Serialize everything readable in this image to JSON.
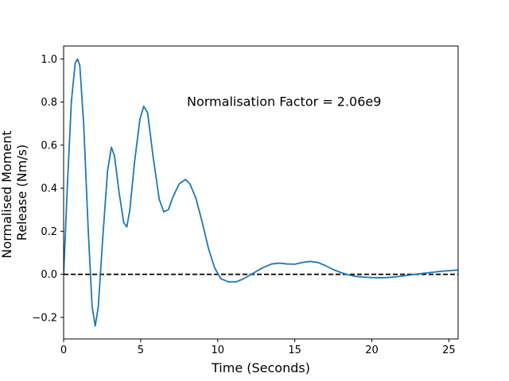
{
  "chart_data": {
    "type": "line",
    "title": "",
    "xlabel": "Time (Seconds)",
    "ylabel_lines": [
      "Normalised Moment",
      "Release (Nm/s)"
    ],
    "xlim": [
      0,
      25.6
    ],
    "ylim": [
      -0.3,
      1.06
    ],
    "xticks": [
      0,
      5,
      10,
      15,
      20,
      25
    ],
    "yticks": [
      -0.2,
      0.0,
      0.2,
      0.4,
      0.6,
      0.8,
      1.0
    ],
    "ytick_labels": [
      "−0.2",
      "0.0",
      "0.2",
      "0.4",
      "0.6",
      "0.8",
      "1.0"
    ],
    "grid": false,
    "annotation": {
      "text": "Normalisation Factor = 2.06e9",
      "x": 8.0,
      "y": 0.8
    },
    "reference_line": {
      "y": 0.0,
      "style": "dashed",
      "color": "#000000"
    },
    "series": [
      {
        "color": "#1f77b4",
        "points": [
          [
            0.0,
            0.0
          ],
          [
            0.25,
            0.42
          ],
          [
            0.5,
            0.8
          ],
          [
            0.75,
            0.98
          ],
          [
            0.9,
            1.0
          ],
          [
            1.05,
            0.97
          ],
          [
            1.3,
            0.7
          ],
          [
            1.6,
            0.2
          ],
          [
            1.85,
            -0.15
          ],
          [
            2.05,
            -0.24
          ],
          [
            2.25,
            -0.15
          ],
          [
            2.55,
            0.18
          ],
          [
            2.85,
            0.48
          ],
          [
            3.1,
            0.59
          ],
          [
            3.3,
            0.55
          ],
          [
            3.6,
            0.38
          ],
          [
            3.9,
            0.24
          ],
          [
            4.1,
            0.22
          ],
          [
            4.3,
            0.3
          ],
          [
            4.6,
            0.52
          ],
          [
            4.95,
            0.72
          ],
          [
            5.2,
            0.78
          ],
          [
            5.45,
            0.75
          ],
          [
            5.8,
            0.55
          ],
          [
            6.2,
            0.35
          ],
          [
            6.5,
            0.29
          ],
          [
            6.8,
            0.3
          ],
          [
            7.1,
            0.36
          ],
          [
            7.5,
            0.42
          ],
          [
            7.9,
            0.44
          ],
          [
            8.2,
            0.42
          ],
          [
            8.6,
            0.35
          ],
          [
            9.0,
            0.24
          ],
          [
            9.4,
            0.12
          ],
          [
            9.8,
            0.03
          ],
          [
            10.2,
            -0.02
          ],
          [
            10.7,
            -0.035
          ],
          [
            11.2,
            -0.035
          ],
          [
            11.7,
            -0.02
          ],
          [
            12.3,
            0.005
          ],
          [
            12.9,
            0.03
          ],
          [
            13.5,
            0.048
          ],
          [
            14.0,
            0.052
          ],
          [
            14.5,
            0.048
          ],
          [
            15.0,
            0.047
          ],
          [
            15.5,
            0.055
          ],
          [
            16.0,
            0.06
          ],
          [
            16.5,
            0.055
          ],
          [
            17.0,
            0.04
          ],
          [
            17.5,
            0.022
          ],
          [
            18.0,
            0.008
          ],
          [
            18.5,
            -0.003
          ],
          [
            19.0,
            -0.01
          ],
          [
            19.5,
            -0.013
          ],
          [
            20.0,
            -0.015
          ],
          [
            20.5,
            -0.016
          ],
          [
            21.0,
            -0.015
          ],
          [
            21.5,
            -0.012
          ],
          [
            22.0,
            -0.008
          ],
          [
            22.5,
            -0.003
          ],
          [
            23.0,
            0.002
          ],
          [
            23.5,
            0.006
          ],
          [
            24.0,
            0.01
          ],
          [
            24.5,
            0.014
          ],
          [
            25.0,
            0.017
          ],
          [
            25.6,
            0.02
          ]
        ]
      }
    ]
  },
  "colors": {
    "line": "#1f77b4",
    "axes": "#000000",
    "background": "#ffffff"
  }
}
